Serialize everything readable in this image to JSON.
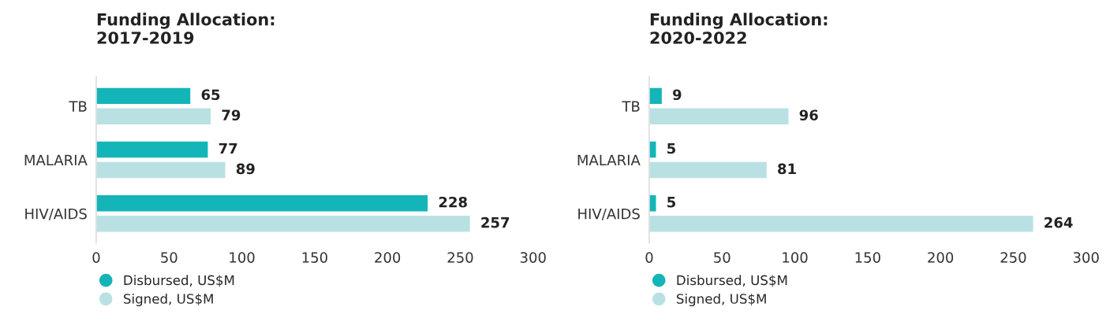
{
  "chart_data": [
    {
      "type": "bar",
      "orientation": "horizontal",
      "title": "Funding Allocation:\n2017-2019",
      "categories": [
        "TB",
        "MALARIA",
        "HIV/AIDS"
      ],
      "series": [
        {
          "name": "Disbursed, US$M",
          "color": "#13b5b8",
          "values": [
            65,
            77,
            228
          ]
        },
        {
          "name": "Signed, US$M",
          "color": "#b9e1e3",
          "values": [
            79,
            89,
            257
          ]
        }
      ],
      "xlim": [
        0,
        300
      ],
      "xticks": [
        0,
        50,
        100,
        150,
        200,
        250,
        300
      ],
      "data_labels": true,
      "legend": "bottom left",
      "grid": false
    },
    {
      "type": "bar",
      "orientation": "horizontal",
      "title": "Funding Allocation:\n2020-2022",
      "categories": [
        "TB",
        "MALARIA",
        "HIV/AIDS"
      ],
      "series": [
        {
          "name": "Disbursed, US$M",
          "color": "#13b5b8",
          "values": [
            9,
            5,
            5
          ]
        },
        {
          "name": "Signed, US$M",
          "color": "#b9e1e3",
          "values": [
            96,
            81,
            264
          ]
        }
      ],
      "xlim": [
        0,
        300
      ],
      "xticks": [
        0,
        50,
        100,
        150,
        200,
        250,
        300
      ],
      "data_labels": true,
      "legend": "bottom left",
      "grid": false
    }
  ]
}
